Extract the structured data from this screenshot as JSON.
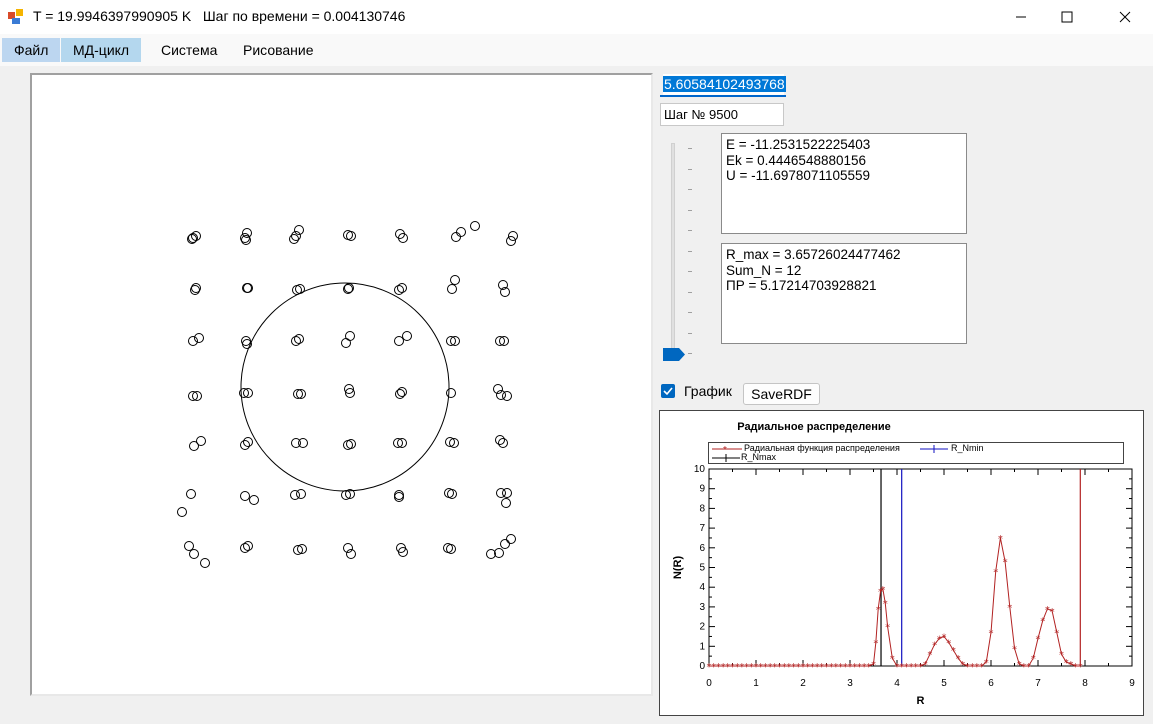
{
  "window": {
    "title": "T = 19.9946397990905 K   Шаг по времени = 0.004130746"
  },
  "menu": {
    "items": [
      "Файл",
      "МД-цикл",
      "Система",
      "Рисование"
    ]
  },
  "controls": {
    "value_field": "5.60584102493768",
    "step_field": "Шаг № 9500",
    "energy_box": [
      "E = -11.2531522225403",
      "Ek = 0.4446548880156",
      "U = -11.6978071105559"
    ],
    "rdf_box": [
      "R_max = 3.65726024477462",
      "Sum_N = 12",
      "ПР = 5.17214703928821"
    ],
    "checkbox": {
      "label": "График",
      "checked": true
    },
    "save_button": "SaveRDF",
    "slider_value": 0
  },
  "chart_data": {
    "type": "line",
    "title": "Радиальное распределение",
    "xlabel": "R",
    "ylabel": "N(R)",
    "xlim": [
      0,
      9
    ],
    "ylim": [
      0,
      10
    ],
    "xticks": [
      "0",
      "1",
      "2",
      "3",
      "4",
      "5",
      "6",
      "7",
      "8",
      "9"
    ],
    "yticks": [
      "0",
      "1",
      "2",
      "3",
      "4",
      "5",
      "6",
      "7",
      "8",
      "9",
      "10"
    ],
    "legend": [
      "Радиальная функция распределения",
      "R_Nmin",
      "R_Nmax"
    ],
    "series": [
      {
        "name": "Радиальная функция распределения",
        "color": "#b22222",
        "marker": "star",
        "x": [
          0,
          0.1,
          0.2,
          0.3,
          0.4,
          0.5,
          0.6,
          0.7,
          0.8,
          0.9,
          1.0,
          1.1,
          1.2,
          1.3,
          1.4,
          1.5,
          1.6,
          1.7,
          1.8,
          1.9,
          2.0,
          2.1,
          2.2,
          2.3,
          2.4,
          2.5,
          2.6,
          2.7,
          2.8,
          2.9,
          3.0,
          3.1,
          3.2,
          3.3,
          3.4,
          3.5,
          3.55,
          3.6,
          3.65,
          3.7,
          3.75,
          3.8,
          3.9,
          4.0,
          4.1,
          4.2,
          4.3,
          4.4,
          4.5,
          4.6,
          4.7,
          4.8,
          4.9,
          5.0,
          5.1,
          5.2,
          5.3,
          5.4,
          5.5,
          5.6,
          5.7,
          5.8,
          5.9,
          6.0,
          6.1,
          6.2,
          6.3,
          6.4,
          6.5,
          6.6,
          6.7,
          6.8,
          6.9,
          7.0,
          7.1,
          7.2,
          7.3,
          7.4,
          7.5,
          7.6,
          7.7,
          7.8,
          7.9
        ],
        "y": [
          0,
          0,
          0,
          0,
          0,
          0,
          0,
          0,
          0,
          0,
          0,
          0,
          0,
          0,
          0,
          0,
          0,
          0,
          0,
          0,
          0,
          0,
          0,
          0,
          0,
          0,
          0,
          0,
          0,
          0,
          0,
          0,
          0,
          0,
          0,
          0.1,
          1.2,
          2.9,
          3.8,
          3.9,
          3.2,
          2.0,
          0.4,
          0,
          0,
          0,
          0,
          0,
          0,
          0.1,
          0.6,
          1.1,
          1.4,
          1.5,
          1.2,
          0.8,
          0.4,
          0.1,
          0,
          0,
          0,
          0,
          0.2,
          1.7,
          4.8,
          6.5,
          5.3,
          3.0,
          0.9,
          0.1,
          0,
          0,
          0.4,
          1.4,
          2.3,
          2.9,
          2.8,
          1.7,
          0.6,
          0.2,
          0.1,
          0,
          0
        ]
      }
    ],
    "vlines": [
      {
        "name": "R_Nmax",
        "x": 3.66,
        "color": "#000000"
      },
      {
        "name": "R_Nmin",
        "x": 4.1,
        "color": "#1010c0"
      },
      {
        "name": "",
        "x": 7.9,
        "color": "#b22222"
      }
    ]
  },
  "simulation": {
    "circle": {
      "cx": 345,
      "cy": 387,
      "r": 104
    },
    "particles": [
      [
        193,
        238
      ],
      [
        196,
        236
      ],
      [
        192,
        239
      ],
      [
        245,
        238
      ],
      [
        247,
        233
      ],
      [
        246,
        240
      ],
      [
        296,
        236
      ],
      [
        299,
        230
      ],
      [
        294,
        239
      ],
      [
        348,
        235
      ],
      [
        351,
        236
      ],
      [
        400,
        234
      ],
      [
        403,
        238
      ],
      [
        456,
        237
      ],
      [
        461,
        232
      ],
      [
        475,
        226
      ],
      [
        513,
        236
      ],
      [
        511,
        241
      ],
      [
        196,
        288
      ],
      [
        195,
        290
      ],
      [
        247,
        288
      ],
      [
        248,
        288
      ],
      [
        297,
        290
      ],
      [
        300,
        289
      ],
      [
        348,
        289
      ],
      [
        349,
        288
      ],
      [
        399,
        290
      ],
      [
        402,
        288
      ],
      [
        452,
        289
      ],
      [
        455,
        280
      ],
      [
        503,
        285
      ],
      [
        505,
        292
      ],
      [
        193,
        341
      ],
      [
        199,
        338
      ],
      [
        246,
        341
      ],
      [
        247,
        344
      ],
      [
        296,
        341
      ],
      [
        299,
        339
      ],
      [
        346,
        343
      ],
      [
        350,
        336
      ],
      [
        399,
        341
      ],
      [
        407,
        336
      ],
      [
        451,
        341
      ],
      [
        455,
        341
      ],
      [
        500,
        341
      ],
      [
        504,
        341
      ],
      [
        193,
        396
      ],
      [
        197,
        396
      ],
      [
        244,
        393
      ],
      [
        248,
        393
      ],
      [
        298,
        394
      ],
      [
        301,
        394
      ],
      [
        349,
        389
      ],
      [
        350,
        393
      ],
      [
        400,
        394
      ],
      [
        402,
        392
      ],
      [
        451,
        393
      ],
      [
        498,
        389
      ],
      [
        501,
        395
      ],
      [
        507,
        396
      ],
      [
        194,
        446
      ],
      [
        201,
        441
      ],
      [
        245,
        445
      ],
      [
        248,
        442
      ],
      [
        296,
        443
      ],
      [
        303,
        443
      ],
      [
        348,
        445
      ],
      [
        351,
        444
      ],
      [
        398,
        443
      ],
      [
        402,
        443
      ],
      [
        450,
        442
      ],
      [
        454,
        443
      ],
      [
        500,
        440
      ],
      [
        503,
        443
      ],
      [
        191,
        494
      ],
      [
        182,
        512
      ],
      [
        245,
        496
      ],
      [
        254,
        500
      ],
      [
        295,
        495
      ],
      [
        301,
        494
      ],
      [
        346,
        495
      ],
      [
        350,
        494
      ],
      [
        399,
        495
      ],
      [
        399,
        497
      ],
      [
        449,
        493
      ],
      [
        452,
        494
      ],
      [
        501,
        493
      ],
      [
        506,
        503
      ],
      [
        507,
        493
      ],
      [
        189,
        546
      ],
      [
        194,
        554
      ],
      [
        205,
        563
      ],
      [
        245,
        548
      ],
      [
        248,
        546
      ],
      [
        298,
        550
      ],
      [
        302,
        549
      ],
      [
        348,
        548
      ],
      [
        351,
        554
      ],
      [
        401,
        548
      ],
      [
        403,
        552
      ],
      [
        448,
        548
      ],
      [
        451,
        549
      ],
      [
        491,
        554
      ],
      [
        499,
        553
      ],
      [
        505,
        544
      ],
      [
        511,
        539
      ]
    ]
  }
}
